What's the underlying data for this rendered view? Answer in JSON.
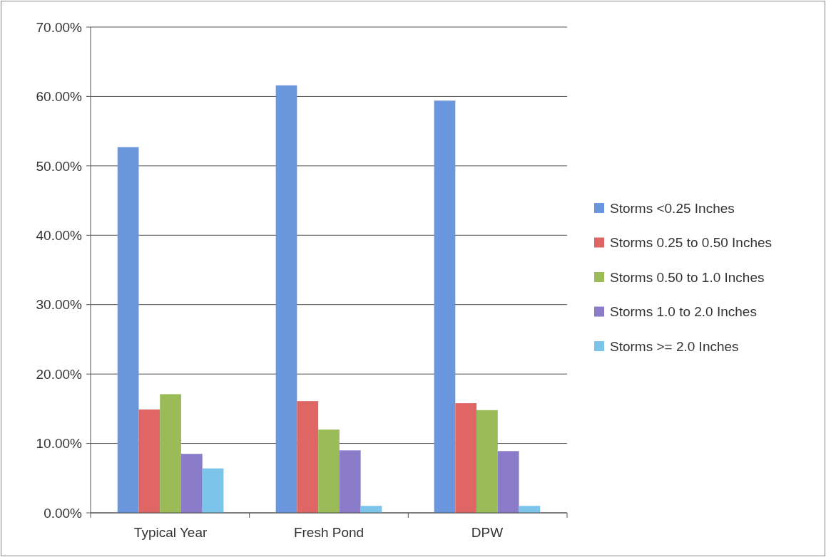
{
  "chart_data": {
    "type": "bar",
    "categories": [
      "Typical Year",
      "Fresh Pond",
      "DPW"
    ],
    "series": [
      {
        "name": "Storms <0.25 Inches",
        "color": "#6a96dd",
        "values": [
          52.7,
          61.6,
          59.4
        ]
      },
      {
        "name": "Storms 0.25 to 0.50 Inches",
        "color": "#e06666",
        "values": [
          14.9,
          16.1,
          15.8
        ]
      },
      {
        "name": "Storms 0.50 to 1.0 Inches",
        "color": "#9bbb59",
        "values": [
          17.1,
          12.0,
          14.8
        ]
      },
      {
        "name": "Storms 1.0 to 2.0 Inches",
        "color": "#8a7cc8",
        "values": [
          8.5,
          9.0,
          8.9
        ]
      },
      {
        "name": "Storms >= 2.0 Inches",
        "color": "#7cc4ea",
        "values": [
          6.4,
          1.0,
          1.0
        ]
      }
    ],
    "ylim": [
      0,
      70
    ],
    "yticks": [
      {
        "value": 0,
        "label": "0.00%"
      },
      {
        "value": 10,
        "label": "10.00%"
      },
      {
        "value": 20,
        "label": "20.00%"
      },
      {
        "value": 30,
        "label": "30.00%"
      },
      {
        "value": 40,
        "label": "40.00%"
      },
      {
        "value": 50,
        "label": "50.00%"
      },
      {
        "value": 60,
        "label": "60.00%"
      },
      {
        "value": 70,
        "label": "70.00%"
      }
    ],
    "grid": "y",
    "legend": "right"
  }
}
